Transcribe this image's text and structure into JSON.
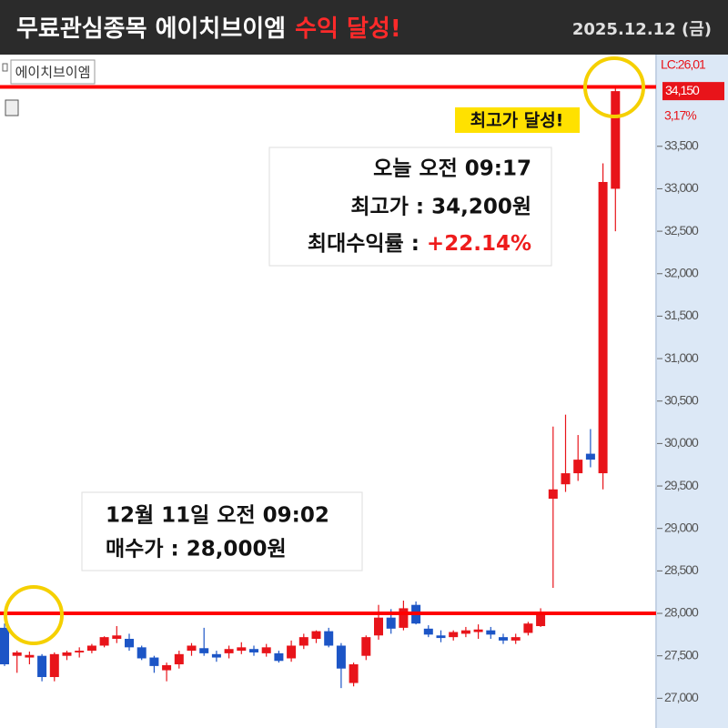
{
  "chart_data": {
    "type": "candlestick",
    "title": "무료관심종목 에이치브이엠",
    "title_highlight": "수익 달성!",
    "date": "2025.12.12 (금)",
    "symbol": "에이치브이엠",
    "high_note": "최고가 달성!",
    "today_box": {
      "line1": "오늘 오전 09:17",
      "line2": "최고가 : 34,200원",
      "line3_label": "최대수익률 : ",
      "line3_value": "+22.14%"
    },
    "buy_box": {
      "line1": "12월 11일 오전 09:02",
      "line2": "매수가 : 28,000원"
    },
    "price_labels": {
      "lc": "LC:26,01",
      "current": {
        "value": 34150,
        "label": "34,150"
      },
      "change": "3,17%"
    },
    "up_color": "#e8141a",
    "down_color": "#1c55c6",
    "hlines": [
      {
        "value": 28000,
        "color": "#ff0000"
      },
      {
        "value": 34200,
        "color": "#ff0000"
      }
    ],
    "open": [
      27830,
      27500,
      27480,
      27500,
      27250,
      27500,
      27540,
      27560,
      27620,
      27700,
      27700,
      27600,
      27480,
      27330,
      27400,
      27560,
      27590,
      27520,
      27530,
      27560,
      27580,
      27530,
      27530,
      27470,
      27620,
      27700,
      27790,
      27620,
      27180,
      27500,
      27740,
      27950,
      27830,
      28100,
      27820,
      27740,
      27720,
      27760,
      27780,
      27800,
      27720,
      27680,
      27770,
      27850,
      29350,
      29520,
      29650,
      29880,
      29650,
      33000
    ],
    "high": [
      27880,
      27560,
      27550,
      27520,
      27540,
      27560,
      27600,
      27640,
      27730,
      27850,
      27760,
      27620,
      27500,
      27420,
      27560,
      27650,
      27830,
      27560,
      27620,
      27660,
      27620,
      27640,
      27560,
      27680,
      27760,
      27800,
      27830,
      27650,
      27420,
      27740,
      28100,
      28050,
      28150,
      28140,
      27860,
      27800,
      27800,
      27840,
      27870,
      27840,
      27760,
      27760,
      27900,
      28060,
      30200,
      30340,
      30100,
      30170,
      33300,
      34200
    ],
    "low": [
      27380,
      27300,
      27400,
      27200,
      27200,
      27450,
      27480,
      27530,
      27600,
      27650,
      27560,
      27450,
      27300,
      27200,
      27350,
      27500,
      27500,
      27430,
      27470,
      27520,
      27500,
      27490,
      27420,
      27430,
      27580,
      27650,
      27600,
      27120,
      27140,
      27450,
      27690,
      27760,
      27800,
      27870,
      27720,
      27660,
      27680,
      27720,
      27700,
      27700,
      27640,
      27640,
      27740,
      27840,
      28300,
      29430,
      29560,
      29720,
      29460,
      32500
    ],
    "close": [
      27400,
      27540,
      27510,
      27250,
      27520,
      27540,
      27560,
      27620,
      27720,
      27740,
      27600,
      27470,
      27380,
      27390,
      27520,
      27620,
      27530,
      27480,
      27580,
      27600,
      27540,
      27600,
      27440,
      27620,
      27720,
      27790,
      27620,
      27350,
      27400,
      27720,
      27950,
      27820,
      28060,
      27880,
      27750,
      27710,
      27780,
      27800,
      27810,
      27750,
      27680,
      27720,
      27880,
      27990,
      29460,
      29650,
      29810,
      29810,
      33080,
      34150
    ],
    "ylim": [
      26650,
      34580
    ],
    "yticks": [
      {
        "value": 27000,
        "label": "27,000"
      },
      {
        "value": 27500,
        "label": "27,500"
      },
      {
        "value": 28000,
        "label": "28,000"
      },
      {
        "value": 28500,
        "label": "28,500"
      },
      {
        "value": 29000,
        "label": "29,000"
      },
      {
        "value": 29500,
        "label": "29,500"
      },
      {
        "value": 30000,
        "label": "30,000"
      },
      {
        "value": 30500,
        "label": "30,500"
      },
      {
        "value": 31000,
        "label": "31,000"
      },
      {
        "value": 31500,
        "label": "31,500"
      },
      {
        "value": 32000,
        "label": "32,000"
      },
      {
        "value": 32500,
        "label": "32,500"
      },
      {
        "value": 33000,
        "label": "33,000"
      },
      {
        "value": 33500,
        "label": "33,500"
      }
    ]
  }
}
